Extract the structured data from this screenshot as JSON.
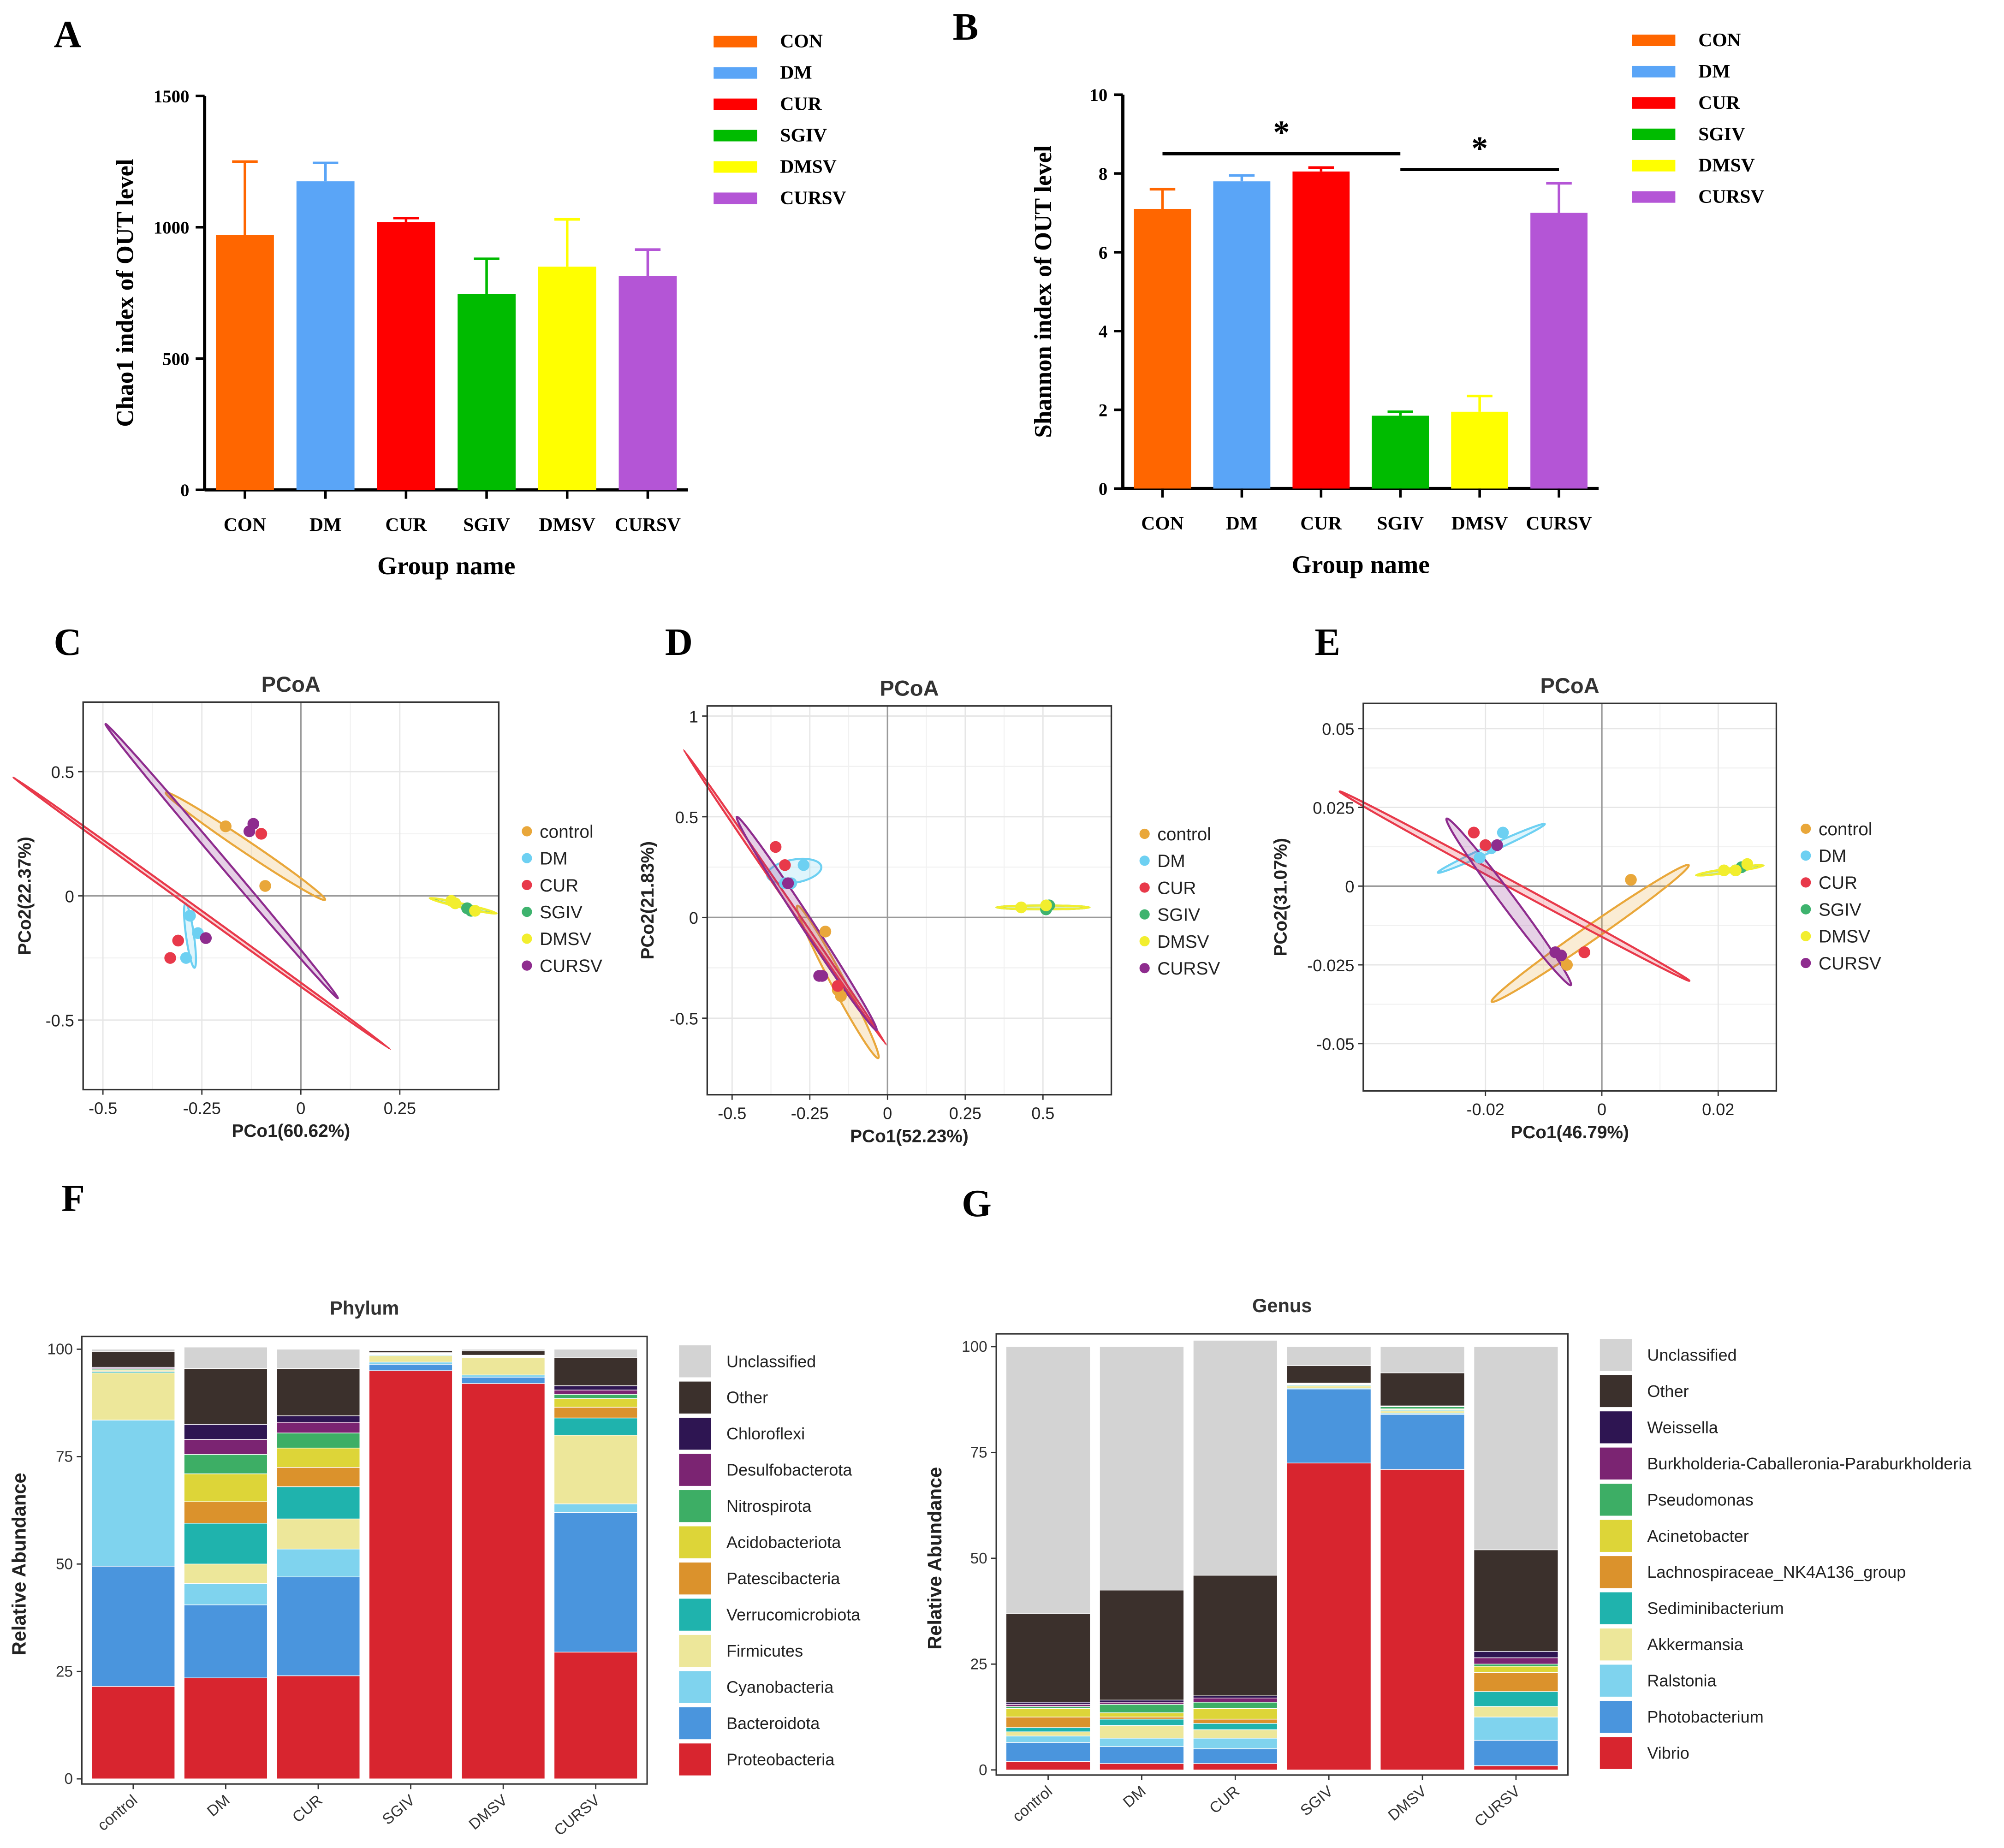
{
  "colors": {
    "bar_groups": [
      "#FF6600",
      "#5AA5F7",
      "#FF0000",
      "#00BB00",
      "#FFFF00",
      "#B455D6"
    ],
    "pcoa_groups": [
      "#E9A73A",
      "#6DD0F2",
      "#E8394A",
      "#3EB36E",
      "#F2EE2E",
      "#8E2C8E"
    ],
    "phylum": [
      "#D3D3D3",
      "#3B302C",
      "#2E1552",
      "#7B2472",
      "#3DAE65",
      "#DDD538",
      "#DB922C",
      "#1FB3AD",
      "#EDE79A",
      "#7FD3EE",
      "#4A95DD",
      "#D8252F"
    ],
    "genus": [
      "#D3D3D3",
      "#3B302C",
      "#2E1552",
      "#7B2472",
      "#3DAE65",
      "#DDD538",
      "#DB922C",
      "#1FB3AD",
      "#EDE79A",
      "#7FD3EE",
      "#4A95DD",
      "#D8252F"
    ]
  },
  "chart_data": [
    {
      "panel": "A",
      "type": "bar",
      "categories": [
        "CON",
        "DM",
        "CUR",
        "SGIV",
        "DMSV",
        "CURSV"
      ],
      "values": [
        970,
        1175,
        1020,
        745,
        850,
        815
      ],
      "errors": [
        280,
        70,
        15,
        135,
        180,
        100
      ],
      "ylabel": "Chao1 index of OUT level",
      "xlabel": "Group name",
      "ylim": [
        0,
        1500
      ],
      "yticks": [
        0,
        500,
        1000,
        1500
      ],
      "legend": [
        "CON",
        "DM",
        "CUR",
        "SGIV",
        "DMSV",
        "CURSV"
      ]
    },
    {
      "panel": "B",
      "type": "bar",
      "categories": [
        "CON",
        "DM",
        "CUR",
        "SGIV",
        "DMSV",
        "CURSV"
      ],
      "values": [
        7.1,
        7.8,
        8.05,
        1.85,
        1.95,
        7.0
      ],
      "errors": [
        0.5,
        0.15,
        0.1,
        0.1,
        0.4,
        0.75
      ],
      "ylabel": "Shannon index of OUT level",
      "xlabel": "Group name",
      "ylim": [
        0,
        10
      ],
      "yticks": [
        0,
        2,
        4,
        6,
        8,
        10
      ],
      "legend": [
        "CON",
        "DM",
        "CUR",
        "SGIV",
        "DMSV",
        "CURSV"
      ],
      "significance": [
        {
          "from": "CON",
          "to": "SGIV",
          "label": "*",
          "y": 8.5
        },
        {
          "from": "SGIV",
          "to": "CURSV",
          "label": "*",
          "y": 8.1
        }
      ]
    },
    {
      "panel": "C",
      "type": "scatter",
      "title": "PCoA",
      "xlabel": "PCo1(60.62%)",
      "ylabel": "PCo2(22.37%)",
      "xlim": [
        -0.55,
        0.5
      ],
      "ylim": [
        -0.78,
        0.78
      ],
      "xticks": [
        -0.5,
        -0.25,
        0,
        0.25
      ],
      "xtick_labels": [
        "-0.5",
        "-0.25",
        "0",
        "0.25"
      ],
      "yticks": [
        -0.5,
        0,
        0.5
      ],
      "ytick_labels": [
        "-0.5",
        "0",
        "0.5"
      ],
      "legend": [
        "control",
        "DM",
        "CUR",
        "SGIV",
        "DMSV",
        "CURSV"
      ],
      "series": [
        {
          "name": "control",
          "points": [
            [
              -0.19,
              0.28
            ],
            [
              -0.09,
              0.04
            ]
          ],
          "ellipse": [
            -0.14,
            0.2,
            0.59,
            0.035,
            -47
          ]
        },
        {
          "name": "DM",
          "points": [
            [
              -0.28,
              -0.08
            ],
            [
              -0.26,
              -0.15
            ],
            [
              -0.29,
              -0.25
            ]
          ],
          "ellipse": [
            -0.28,
            -0.16,
            0.26,
            0.02,
            -85
          ]
        },
        {
          "name": "CUR",
          "points": [
            [
              -0.33,
              -0.25
            ],
            [
              -0.31,
              -0.18
            ],
            [
              -0.1,
              0.25
            ]
          ],
          "ellipse": [
            -0.25,
            -0.07,
            1.45,
            0.01,
            -49
          ]
        },
        {
          "name": "SGIV",
          "points": [
            [
              0.42,
              -0.05
            ],
            [
              0.43,
              -0.06
            ]
          ],
          "ellipse": [
            0.41,
            -0.04,
            0.17,
            0.012,
            -20
          ]
        },
        {
          "name": "DMSV",
          "points": [
            [
              0.38,
              -0.02
            ],
            [
              0.39,
              -0.03
            ],
            [
              0.44,
              -0.06
            ]
          ],
          "ellipse": [
            0.41,
            -0.04,
            0.18,
            0.015,
            -20
          ]
        },
        {
          "name": "CURSV",
          "points": [
            [
              -0.24,
              -0.17
            ],
            [
              -0.13,
              0.26
            ],
            [
              -0.12,
              0.29
            ]
          ],
          "ellipse": [
            -0.2,
            0.14,
            1.25,
            0.022,
            -62
          ]
        }
      ]
    },
    {
      "panel": "D",
      "type": "scatter",
      "title": "PCoA",
      "xlabel": "PCo1(52.23%)",
      "ylabel": "PCo2(21.83%)",
      "xlim": [
        -0.58,
        0.72
      ],
      "ylim": [
        -0.88,
        1.05
      ],
      "xticks": [
        -0.5,
        -0.25,
        0,
        0.25,
        0.5
      ],
      "xtick_labels": [
        "-0.5",
        "-0.25",
        "0",
        "0.25",
        "0.5"
      ],
      "yticks": [
        -0.5,
        0,
        0.5,
        1
      ],
      "ytick_labels": [
        "-0.5",
        "0",
        "0.5",
        "1"
      ],
      "legend": [
        "control",
        "DM",
        "CUR",
        "SGIV",
        "DMSV",
        "CURSV"
      ],
      "series": [
        {
          "name": "control",
          "points": [
            [
              -0.2,
              -0.07
            ],
            [
              -0.16,
              -0.36
            ],
            [
              -0.15,
              -0.39
            ]
          ],
          "ellipse": [
            -0.16,
            -0.32,
            0.8,
            0.045,
            -71
          ]
        },
        {
          "name": "DM",
          "points": [
            [
              -0.27,
              0.26
            ],
            [
              -0.33,
              0.17
            ],
            [
              -0.31,
              0.17
            ]
          ],
          "ellipse": [
            -0.3,
            0.23,
            0.18,
            0.11,
            15
          ]
        },
        {
          "name": "CUR",
          "points": [
            [
              -0.36,
              0.35
            ],
            [
              -0.33,
              0.26
            ],
            [
              -0.16,
              -0.34
            ]
          ],
          "ellipse": [
            -0.33,
            0.1,
            1.6,
            0.012,
            -66
          ]
        },
        {
          "name": "SGIV",
          "points": [
            [
              0.51,
              0.04
            ],
            [
              0.52,
              0.06
            ]
          ],
          "ellipse": [
            0.5,
            0.05,
            0.3,
            0.012,
            0
          ]
        },
        {
          "name": "DMSV",
          "points": [
            [
              0.43,
              0.05
            ],
            [
              0.51,
              0.06
            ]
          ],
          "ellipse": [
            0.5,
            0.05,
            0.3,
            0.015,
            0
          ]
        },
        {
          "name": "CURSV",
          "points": [
            [
              -0.32,
              0.17
            ],
            [
              -0.22,
              -0.29
            ],
            [
              -0.21,
              -0.29
            ]
          ],
          "ellipse": [
            -0.26,
            -0.03,
            1.15,
            0.04,
            -67
          ]
        }
      ]
    },
    {
      "panel": "E",
      "type": "scatter",
      "title": "PCoA",
      "xlabel": "PCo1(46.79%)",
      "ylabel": "PCo2(31.07%)",
      "xlim": [
        -0.041,
        0.03
      ],
      "ylim": [
        -0.065,
        0.058
      ],
      "xticks": [
        -0.02,
        0,
        0.02
      ],
      "xtick_labels": [
        "-0.02",
        "0",
        "0.02"
      ],
      "yticks": [
        -0.05,
        -0.025,
        0,
        0.025,
        0.05
      ],
      "ytick_labels": [
        "-0.05",
        "-0.025",
        "0",
        "0.025",
        "0.05"
      ],
      "legend": [
        "control",
        "DM",
        "CUR",
        "SGIV",
        "DMSV",
        "CURSV"
      ],
      "series": [
        {
          "name": "control",
          "points": [
            [
              0.005,
              0.002
            ],
            [
              -0.006,
              -0.025
            ]
          ],
          "ellipse": [
            -0.002,
            -0.015,
            0.055,
            0.003,
            52
          ]
        },
        {
          "name": "DM",
          "points": [
            [
              -0.017,
              0.017
            ],
            [
              -0.021,
              0.009
            ],
            [
              -0.019,
              0.012
            ]
          ],
          "ellipse": [
            -0.019,
            0.012,
            0.024,
            0.0015,
            40
          ]
        },
        {
          "name": "CUR",
          "points": [
            [
              -0.022,
              0.017
            ],
            [
              -0.02,
              0.013
            ],
            [
              -0.003,
              -0.021
            ]
          ],
          "ellipse": [
            -0.015,
            0.0,
            0.085,
            0.0015,
            -45
          ]
        },
        {
          "name": "SGIV",
          "points": [
            [
              0.024,
              0.006
            ],
            [
              0.023,
              0.005
            ]
          ],
          "ellipse": [
            0.022,
            0.005,
            0.012,
            0.0008,
            15
          ]
        },
        {
          "name": "DMSV",
          "points": [
            [
              0.021,
              0.005
            ],
            [
              0.023,
              0.005
            ],
            [
              0.025,
              0.007
            ]
          ],
          "ellipse": [
            0.022,
            0.005,
            0.012,
            0.0012,
            15
          ]
        },
        {
          "name": "CURSV",
          "points": [
            [
              -0.018,
              0.013
            ],
            [
              -0.007,
              -0.022
            ],
            [
              -0.008,
              -0.021
            ]
          ],
          "ellipse": [
            -0.016,
            -0.005,
            0.057,
            0.0025,
            -68
          ]
        }
      ]
    },
    {
      "panel": "F",
      "type": "stacked-bar",
      "title": "Phylum",
      "ylabel": "Relative Abundance",
      "ylim": [
        0,
        100
      ],
      "yticks": [
        0,
        25,
        50,
        75,
        100
      ],
      "categories": [
        "control",
        "DM",
        "CUR",
        "SGIV",
        "DMSV",
        "CURSV"
      ],
      "stack_order_bottom_up": [
        "Proteobacteria",
        "Bacteroidota",
        "Cyanobacteria",
        "Firmicutes",
        "Verrucomicrobiota",
        "Patescibacteria",
        "Acidobacteriota",
        "Nitrospirota",
        "Desulfobacterota",
        "Chloroflexi",
        "Other",
        "Unclassified"
      ],
      "legend": [
        "Unclassified",
        "Other",
        "Chloroflexi",
        "Desulfobacterota",
        "Nitrospirota",
        "Acidobacteriota",
        "Patescibacteria",
        "Verrucomicrobiota",
        "Firmicutes",
        "Cyanobacteria",
        "Bacteroidota",
        "Proteobacteria"
      ],
      "series": [
        {
          "name": "Proteobacteria",
          "values": [
            21.5,
            23.5,
            24.0,
            95.0,
            92.0,
            29.5
          ]
        },
        {
          "name": "Bacteroidota",
          "values": [
            28.0,
            17.0,
            23.0,
            1.5,
            1.5,
            32.5
          ]
        },
        {
          "name": "Cyanobacteria",
          "values": [
            34.0,
            5.0,
            6.5,
            0.5,
            0.5,
            2.0
          ]
        },
        {
          "name": "Firmicutes",
          "values": [
            11.0,
            4.5,
            7.0,
            1.5,
            4.0,
            16.0
          ]
        },
        {
          "name": "Verrucomicrobiota",
          "values": [
            0.3,
            9.5,
            7.5,
            0.2,
            0.1,
            4.0
          ]
        },
        {
          "name": "Patescibacteria",
          "values": [
            0.2,
            5.0,
            4.5,
            0.1,
            0.1,
            2.5
          ]
        },
        {
          "name": "Acidobacteriota",
          "values": [
            0.2,
            6.5,
            4.5,
            0.1,
            0.1,
            2.0
          ]
        },
        {
          "name": "Nitrospirota",
          "values": [
            0.2,
            4.5,
            3.5,
            0.1,
            0.1,
            1.0
          ]
        },
        {
          "name": "Desulfobacterota",
          "values": [
            0.2,
            3.5,
            2.5,
            0.1,
            0.1,
            1.0
          ]
        },
        {
          "name": "Chloroflexi",
          "values": [
            0.2,
            3.5,
            1.5,
            0.1,
            0.1,
            1.0
          ]
        },
        {
          "name": "Other",
          "values": [
            3.7,
            13.0,
            11.0,
            0.5,
            1.0,
            6.5
          ]
        },
        {
          "name": "Unclassified",
          "values": [
            0.5,
            5.0,
            4.5,
            0.2,
            0.4,
            2.0
          ]
        }
      ]
    },
    {
      "panel": "G",
      "type": "stacked-bar",
      "title": "Genus",
      "ylabel": "Relative Abundance",
      "ylim": [
        0,
        100
      ],
      "yticks": [
        0,
        25,
        50,
        75,
        100
      ],
      "categories": [
        "control",
        "DM",
        "CUR",
        "SGIV",
        "DMSV",
        "CURSV"
      ],
      "stack_order_bottom_up": [
        "Vibrio",
        "Photobacterium",
        "Ralstonia",
        "Akkermansia",
        "Sediminibacterium",
        "Lachnospiraceae_NK4A136_group",
        "Acinetobacter",
        "Pseudomonas",
        "Burkholderia-Caballeronia-Paraburkholderia",
        "Weissella",
        "Other",
        "Unclassified"
      ],
      "legend": [
        "Unclassified",
        "Other",
        "Weissella",
        "Burkholderia-Caballeronia-Paraburkholderia",
        "Pseudomonas",
        "Acinetobacter",
        "Lachnospiraceae_NK4A136_group",
        "Sediminibacterium",
        "Akkermansia",
        "Ralstonia",
        "Photobacterium",
        "Vibrio"
      ],
      "series": [
        {
          "name": "Vibrio",
          "values": [
            2.0,
            1.5,
            1.5,
            72.5,
            71.0,
            1.0
          ]
        },
        {
          "name": "Photobacterium",
          "values": [
            4.5,
            4.0,
            3.5,
            17.5,
            13.0,
            6.0
          ]
        },
        {
          "name": "Ralstonia",
          "values": [
            1.5,
            2.0,
            2.5,
            0.2,
            0.3,
            5.5
          ]
        },
        {
          "name": "Akkermansia",
          "values": [
            1.0,
            3.0,
            2.0,
            0.5,
            0.5,
            2.5
          ]
        },
        {
          "name": "Sediminibacterium",
          "values": [
            1.0,
            1.5,
            1.5,
            0.2,
            0.2,
            3.5
          ]
        },
        {
          "name": "Lachnospiraceae_NK4A136_group",
          "values": [
            2.5,
            0.5,
            1.0,
            0.1,
            0.1,
            4.5
          ]
        },
        {
          "name": "Acinetobacter",
          "values": [
            2.0,
            1.0,
            2.5,
            0.1,
            0.2,
            1.5
          ]
        },
        {
          "name": "Pseudomonas",
          "values": [
            0.5,
            2.0,
            1.5,
            0.1,
            0.5,
            0.5
          ]
        },
        {
          "name": "Burkholderia-Caballeronia-Paraburkholderia",
          "values": [
            0.5,
            0.5,
            1.0,
            0.1,
            0.1,
            1.5
          ]
        },
        {
          "name": "Weissella",
          "values": [
            0.5,
            0.5,
            0.5,
            0.1,
            0.1,
            1.5
          ]
        },
        {
          "name": "Other",
          "values": [
            21.0,
            26.0,
            28.5,
            4.1,
            7.8,
            24.0
          ]
        },
        {
          "name": "Unclassified",
          "values": [
            63.0,
            57.5,
            55.5,
            4.5,
            6.2,
            48.0
          ]
        }
      ]
    }
  ]
}
